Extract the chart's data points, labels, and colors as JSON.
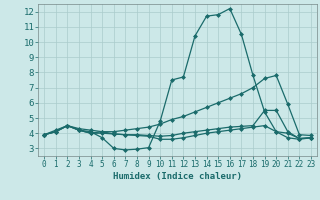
{
  "title": "",
  "xlabel": "Humidex (Indice chaleur)",
  "xlim": [
    -0.5,
    23.5
  ],
  "ylim": [
    2.5,
    12.5
  ],
  "yticks": [
    3,
    4,
    5,
    6,
    7,
    8,
    9,
    10,
    11,
    12
  ],
  "xticks": [
    0,
    1,
    2,
    3,
    4,
    5,
    6,
    7,
    8,
    9,
    10,
    11,
    12,
    13,
    14,
    15,
    16,
    17,
    18,
    19,
    20,
    21,
    22,
    23
  ],
  "bg_color": "#cce8e8",
  "grid_color": "#aacccc",
  "line_color": "#1a6b6b",
  "marker": "D",
  "marker_size": 2.0,
  "line_width": 0.9,
  "curves": [
    {
      "x": [
        0,
        1,
        2,
        3,
        4,
        5,
        6,
        7,
        8,
        9,
        10,
        11,
        12,
        13,
        14,
        15,
        16,
        17,
        18,
        19,
        20,
        21,
        22,
        23
      ],
      "y": [
        3.9,
        4.2,
        4.5,
        4.2,
        4.1,
        3.7,
        3.0,
        2.9,
        2.95,
        3.05,
        4.8,
        7.5,
        7.7,
        10.4,
        11.7,
        11.8,
        12.2,
        10.5,
        7.8,
        5.4,
        4.1,
        3.7,
        3.6,
        3.7
      ]
    },
    {
      "x": [
        0,
        1,
        2,
        3,
        4,
        5,
        6,
        7,
        8,
        9,
        10,
        11,
        12,
        13,
        14,
        15,
        16,
        17,
        18,
        19,
        20,
        21,
        22,
        23
      ],
      "y": [
        3.9,
        4.1,
        4.5,
        4.2,
        4.0,
        4.1,
        4.1,
        4.2,
        4.3,
        4.4,
        4.6,
        4.9,
        5.1,
        5.4,
        5.7,
        6.0,
        6.3,
        6.6,
        7.0,
        7.6,
        7.8,
        5.9,
        3.9,
        3.85
      ]
    },
    {
      "x": [
        0,
        1,
        2,
        3,
        4,
        5,
        6,
        7,
        8,
        9,
        10,
        11,
        12,
        13,
        14,
        15,
        16,
        17,
        18,
        19,
        20,
        21,
        22,
        23
      ],
      "y": [
        3.9,
        4.1,
        4.5,
        4.2,
        4.0,
        4.0,
        3.95,
        3.9,
        3.9,
        3.85,
        3.8,
        3.85,
        4.0,
        4.1,
        4.2,
        4.3,
        4.4,
        4.45,
        4.5,
        5.5,
        5.5,
        4.1,
        3.65,
        3.7
      ]
    },
    {
      "x": [
        0,
        1,
        2,
        3,
        4,
        5,
        6,
        7,
        8,
        9,
        10,
        11,
        12,
        13,
        14,
        15,
        16,
        17,
        18,
        19,
        20,
        21,
        22,
        23
      ],
      "y": [
        3.9,
        4.1,
        4.5,
        4.3,
        4.2,
        4.1,
        3.95,
        3.9,
        3.85,
        3.8,
        3.6,
        3.6,
        3.7,
        3.85,
        4.0,
        4.1,
        4.2,
        4.3,
        4.4,
        4.5,
        4.1,
        4.0,
        3.65,
        3.7
      ]
    }
  ]
}
